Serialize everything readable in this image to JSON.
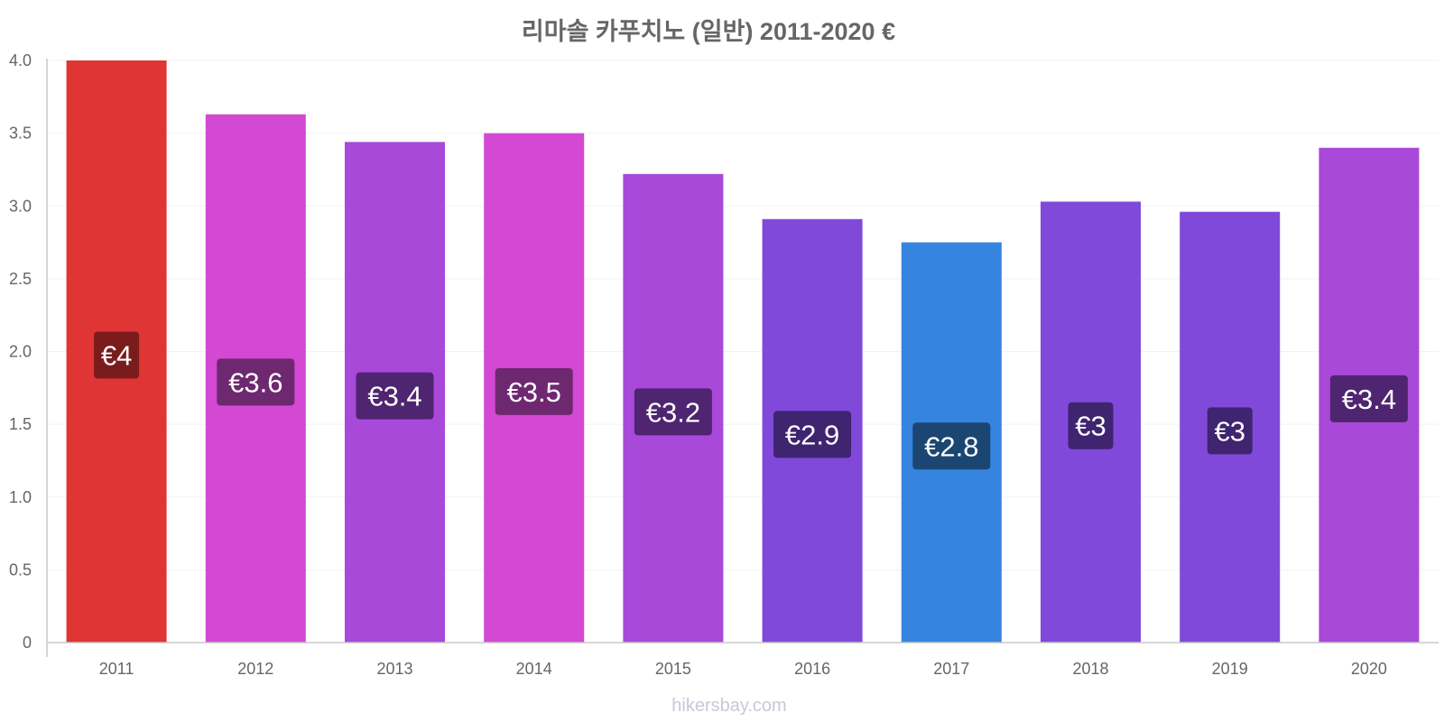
{
  "chart_data": {
    "type": "bar",
    "title": "리마솔 카푸치노 (일반) 2011-2020 €",
    "categories": [
      "2011",
      "2012",
      "2013",
      "2014",
      "2015",
      "2016",
      "2017",
      "2018",
      "2019",
      "2020"
    ],
    "values": [
      4.0,
      3.63,
      3.44,
      3.5,
      3.22,
      2.91,
      2.75,
      3.03,
      2.96,
      3.4
    ],
    "value_labels": [
      "€4",
      "€3.6",
      "€3.4",
      "€3.5",
      "€3.2",
      "€2.9",
      "€2.8",
      "€3",
      "€3",
      "€3.4"
    ],
    "bar_colors": [
      "#e03535",
      "#d349d3",
      "#a849d9",
      "#d349d3",
      "#a849d9",
      "#8149d9",
      "#3584e0",
      "#8149d9",
      "#8149d9",
      "#a849d9"
    ],
    "label_bg_colors": [
      "#7a1c1c",
      "#6e2870",
      "#4f2470",
      "#6e2870",
      "#4f2470",
      "#3f2470",
      "#1c4672",
      "#3f2470",
      "#3f2470",
      "#4f2470"
    ],
    "ylim": [
      0,
      4.0
    ],
    "yticks": [
      0,
      0.5,
      1.0,
      1.5,
      2.0,
      2.5,
      3.0,
      3.5,
      4.0
    ],
    "ytick_labels": [
      "0",
      "0.5",
      "1.0",
      "1.5",
      "2.0",
      "2.5",
      "3.0",
      "3.5",
      "4.0"
    ],
    "xlabel": "",
    "ylabel": "",
    "grid": true,
    "legend": "none"
  },
  "credit": "hikersbay.com"
}
